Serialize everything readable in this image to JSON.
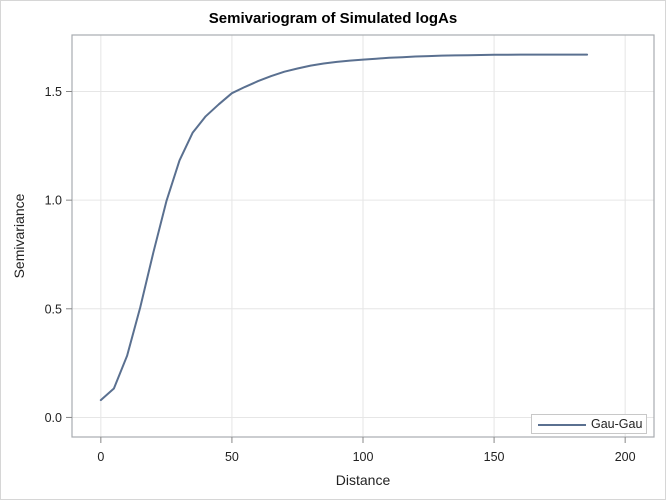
{
  "chart_data": {
    "type": "line",
    "title": "Semivariogram of Simulated logAs",
    "xlabel": "Distance",
    "ylabel": "Semivariance",
    "xlim": [
      -11,
      211
    ],
    "ylim": [
      -0.09,
      1.76
    ],
    "xticks": [
      0,
      50,
      100,
      150,
      200
    ],
    "xtick_labels": [
      "0",
      "50",
      "100",
      "150",
      "200"
    ],
    "yticks": [
      0.0,
      0.5,
      1.0,
      1.5
    ],
    "ytick_labels": [
      "0.0",
      "0.5",
      "1.0",
      "1.5"
    ],
    "grid": true,
    "legend_position": "lower right",
    "series": [
      {
        "name": "Gau-Gau",
        "color": "#5a7090",
        "x": [
          0,
          5,
          10,
          15,
          20,
          25,
          30,
          35,
          40,
          45,
          50,
          55,
          60,
          65,
          70,
          75,
          80,
          85,
          90,
          95,
          100,
          105,
          110,
          115,
          120,
          125,
          130,
          135,
          140,
          145,
          150,
          155,
          160,
          165,
          170,
          175,
          180,
          185.5
        ],
        "y": [
          0.08,
          0.133,
          0.284,
          0.506,
          0.758,
          0.995,
          1.183,
          1.31,
          1.386,
          1.441,
          1.492,
          1.521,
          1.548,
          1.571,
          1.591,
          1.606,
          1.619,
          1.629,
          1.636,
          1.642,
          1.647,
          1.651,
          1.655,
          1.658,
          1.661,
          1.663,
          1.665,
          1.666,
          1.667,
          1.668,
          1.669,
          1.669,
          1.67,
          1.67,
          1.67,
          1.67,
          1.67,
          1.67
        ]
      }
    ]
  },
  "legend": {
    "items": [
      {
        "label": "Gau-Gau",
        "color": "#5a7090"
      }
    ]
  }
}
